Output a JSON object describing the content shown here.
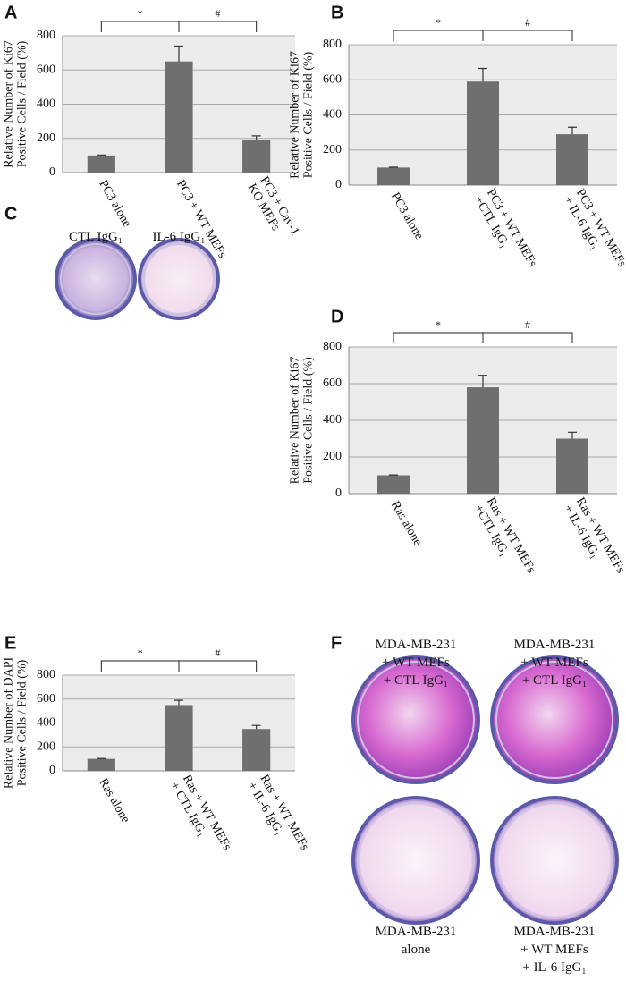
{
  "chart_data": [
    {
      "type": "bar",
      "panel": "A",
      "ylabel": "Relative Number of Ki67\nPositive Cells / Field (%)",
      "categories": [
        "PC3 alone",
        "PC3 + WT MEFs",
        "PC3 + Cav-1\nKO MEFs"
      ],
      "values": [
        100,
        650,
        190
      ],
      "errors": [
        3,
        90,
        25
      ],
      "color": "#6f6f6f",
      "ylim": [
        0,
        800
      ],
      "yticks": [
        0,
        200,
        400,
        600,
        800
      ],
      "grid": true,
      "annotations": [
        "*",
        "#"
      ]
    },
    {
      "type": "bar",
      "panel": "B",
      "ylabel": "Relative Number of Ki67\nPositive Cells / Field (%)",
      "categories": [
        "PC3 alone",
        "PC3 + WT MEFs\n+CTL IgG₁",
        "PC3 + WT MEFs\n+ IL-6 IgG₁"
      ],
      "values": [
        100,
        590,
        290
      ],
      "errors": [
        2,
        75,
        40
      ],
      "color": "#6f6f6f",
      "ylim": [
        0,
        800
      ],
      "yticks": [
        0,
        200,
        400,
        600,
        800
      ],
      "grid": true,
      "annotations": [
        "*",
        "#"
      ]
    },
    {
      "type": "bar",
      "panel": "D",
      "ylabel": "Relative Number of Ki67\nPositive Cells / Field (%)",
      "categories": [
        "Ras alone",
        "Ras + WT MEFs\n+CTL IgG₁",
        "Ras + WT MEFs\n+ IL-6 IgG₁"
      ],
      "values": [
        100,
        580,
        300
      ],
      "errors": [
        2,
        65,
        35
      ],
      "color": "#6f6f6f",
      "ylim": [
        0,
        800
      ],
      "yticks": [
        0,
        200,
        400,
        600,
        800
      ],
      "grid": true,
      "annotations": [
        "*",
        "#"
      ]
    },
    {
      "type": "bar",
      "panel": "E",
      "ylabel": "Relative Number of DAPI\nPositive Cells / Field (%)",
      "categories": [
        "Ras alone",
        "Ras + WT MEFs\n+ CTL IgG₁",
        "Ras + WT MEFs\n+ IL-6 IgG₁"
      ],
      "values": [
        100,
        550,
        350
      ],
      "errors": [
        3,
        40,
        30
      ],
      "color": "#6f6f6f",
      "ylim": [
        0,
        800
      ],
      "yticks": [
        0,
        200,
        400,
        600,
        800
      ],
      "grid": true,
      "annotations": [
        "*",
        "#"
      ]
    }
  ],
  "photos": [
    {
      "panel": "C",
      "labels": [
        "CTL IgG₁",
        "IL-6 IgG₁"
      ]
    },
    {
      "panel": "F",
      "labels": [
        "MDA-MB-231\n+ WT MEFs\n+ CTL IgG₁",
        "MDA-MB-231\n+ WT MEFs\n+ CTL IgG₁",
        "MDA-MB-231\nalone",
        "MDA-MB-231\n+ WT MEFs\n+ IL-6 IgG₁"
      ]
    }
  ]
}
